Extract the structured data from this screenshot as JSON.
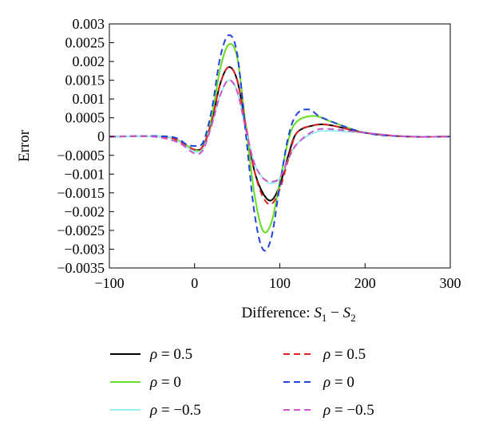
{
  "chart_data": {
    "type": "line",
    "title": "",
    "xlabel": "Difference: S1 − S2",
    "xlabel_parts": {
      "prefix": "Difference: ",
      "s": "S",
      "sub1": "1",
      "minus": " − ",
      "sub2": "2"
    },
    "ylabel": "Error",
    "xlim": [
      -100,
      300
    ],
    "ylim": [
      -0.0035,
      0.003
    ],
    "xticks": [
      -100,
      0,
      100,
      200,
      300
    ],
    "xtick_labels": [
      "−100",
      "0",
      "100",
      "200",
      "300"
    ],
    "yticks": [
      0.003,
      0.0025,
      0.002,
      0.0015,
      0.001,
      0.0005,
      0,
      -0.0005,
      -0.001,
      -0.0015,
      -0.002,
      -0.0025,
      -0.003,
      -0.0035
    ],
    "ytick_labels": [
      "0.003",
      "0.0025",
      "0.002",
      "0.0015",
      "0.001",
      "0.0005",
      "0",
      "−0.0005",
      "−0.001",
      "−0.0015",
      "−0.002",
      "−0.0025",
      "−0.003",
      "−0.0035"
    ],
    "grid": false,
    "legend_position": "bottom",
    "series": [
      {
        "name": "ρ = 0.5",
        "rho_label": "ρ",
        "value_label": "= 0.5",
        "color": "#000000",
        "dash": "solid",
        "points": [
          [
            -100,
            0
          ],
          [
            -40,
            0
          ],
          [
            -20,
            -0.0001
          ],
          [
            0,
            -0.00035
          ],
          [
            10,
            -0.00025
          ],
          [
            20,
            0.0004
          ],
          [
            30,
            0.0014
          ],
          [
            40,
            0.00185
          ],
          [
            50,
            0.0015
          ],
          [
            60,
            0.0003
          ],
          [
            70,
            -0.0009
          ],
          [
            80,
            -0.0015
          ],
          [
            90,
            -0.0017
          ],
          [
            100,
            -0.0013
          ],
          [
            110,
            -0.0005
          ],
          [
            120,
            0.0001
          ],
          [
            140,
            0.0003
          ],
          [
            160,
            0.0003
          ],
          [
            200,
            0.0001
          ],
          [
            250,
            0
          ],
          [
            300,
            0
          ]
        ]
      },
      {
        "name": "ρ = 0",
        "rho_label": "ρ",
        "value_label": "= 0",
        "color": "#66dd22",
        "dash": "solid",
        "points": [
          [
            -100,
            0
          ],
          [
            -40,
            0
          ],
          [
            -20,
            -0.0001
          ],
          [
            0,
            -0.00035
          ],
          [
            10,
            -0.0003
          ],
          [
            20,
            0.0005
          ],
          [
            30,
            0.0018
          ],
          [
            40,
            0.00245
          ],
          [
            50,
            0.0021
          ],
          [
            60,
            0.0003
          ],
          [
            70,
            -0.0015
          ],
          [
            80,
            -0.0025
          ],
          [
            90,
            -0.0023
          ],
          [
            100,
            -0.0012
          ],
          [
            110,
            -0.0001
          ],
          [
            120,
            0.0004
          ],
          [
            140,
            0.00055
          ],
          [
            160,
            0.0004
          ],
          [
            200,
            0.0001
          ],
          [
            250,
            0
          ],
          [
            300,
            0
          ]
        ]
      },
      {
        "name": "ρ = −0.5",
        "rho_label": "ρ",
        "value_label": "= −0.5",
        "color": "#99eeee",
        "dash": "solid",
        "points": [
          [
            -100,
            0
          ],
          [
            -40,
            0
          ],
          [
            -20,
            -0.00012
          ],
          [
            0,
            -0.0004
          ],
          [
            10,
            -0.0003
          ],
          [
            20,
            0.0003
          ],
          [
            30,
            0.0011
          ],
          [
            40,
            0.0015
          ],
          [
            50,
            0.0012
          ],
          [
            60,
            0.0002
          ],
          [
            70,
            -0.0007
          ],
          [
            80,
            -0.0011
          ],
          [
            90,
            -0.00125
          ],
          [
            100,
            -0.0011
          ],
          [
            110,
            -0.0006
          ],
          [
            120,
            -0.0002
          ],
          [
            140,
            0.0001
          ],
          [
            160,
            0.00015
          ],
          [
            200,
            0.0001
          ],
          [
            250,
            0
          ],
          [
            300,
            0
          ]
        ]
      },
      {
        "name": "ρ = 0.5",
        "rho_label": "ρ",
        "value_label": "= 0.5",
        "color": "#dd2222",
        "dash": "dashed",
        "points": [
          [
            -100,
            0
          ],
          [
            -40,
            0
          ],
          [
            -20,
            -0.0001
          ],
          [
            0,
            -0.00035
          ],
          [
            10,
            -0.00025
          ],
          [
            20,
            0.0004
          ],
          [
            30,
            0.0014
          ],
          [
            40,
            0.00185
          ],
          [
            50,
            0.0015
          ],
          [
            60,
            0.0003
          ],
          [
            70,
            -0.0009
          ],
          [
            80,
            -0.0016
          ],
          [
            90,
            -0.0018
          ],
          [
            100,
            -0.0014
          ],
          [
            110,
            -0.0006
          ],
          [
            120,
            0.0001
          ],
          [
            140,
            0.0003
          ],
          [
            160,
            0.0003
          ],
          [
            200,
            0.0001
          ],
          [
            250,
            0
          ],
          [
            300,
            0
          ]
        ]
      },
      {
        "name": "ρ = 0",
        "rho_label": "ρ",
        "value_label": "= 0",
        "color": "#2244dd",
        "dash": "dashed",
        "points": [
          [
            -100,
            0
          ],
          [
            -30,
            0
          ],
          [
            -10,
            -0.0002
          ],
          [
            0,
            -0.00025
          ],
          [
            10,
            -0.00015
          ],
          [
            20,
            0.0007
          ],
          [
            30,
            0.0021
          ],
          [
            40,
            0.0027
          ],
          [
            50,
            0.0022
          ],
          [
            60,
            0.0001
          ],
          [
            70,
            -0.002
          ],
          [
            80,
            -0.003
          ],
          [
            90,
            -0.0027
          ],
          [
            100,
            -0.0013
          ],
          [
            110,
            0
          ],
          [
            120,
            0.0006
          ],
          [
            135,
            0.00072
          ],
          [
            150,
            0.0005
          ],
          [
            200,
            0.0001
          ],
          [
            250,
            0
          ],
          [
            300,
            0
          ]
        ]
      },
      {
        "name": "ρ = −0.5",
        "rho_label": "ρ",
        "value_label": "= −0.5",
        "color": "#cc55cc",
        "dash": "dashed",
        "points": [
          [
            -100,
            0
          ],
          [
            -50,
            0
          ],
          [
            -20,
            -0.00015
          ],
          [
            0,
            -0.00045
          ],
          [
            10,
            -0.00035
          ],
          [
            20,
            0.0003
          ],
          [
            30,
            0.0011
          ],
          [
            40,
            0.0015
          ],
          [
            50,
            0.0012
          ],
          [
            60,
            0.0002
          ],
          [
            70,
            -0.0007
          ],
          [
            80,
            -0.0011
          ],
          [
            90,
            -0.0012
          ],
          [
            100,
            -0.0011
          ],
          [
            110,
            -0.0006
          ],
          [
            120,
            -0.0002
          ],
          [
            140,
            0.00015
          ],
          [
            160,
            0.0002
          ],
          [
            200,
            0.0001
          ],
          [
            250,
            0
          ],
          [
            300,
            0
          ]
        ]
      }
    ]
  }
}
